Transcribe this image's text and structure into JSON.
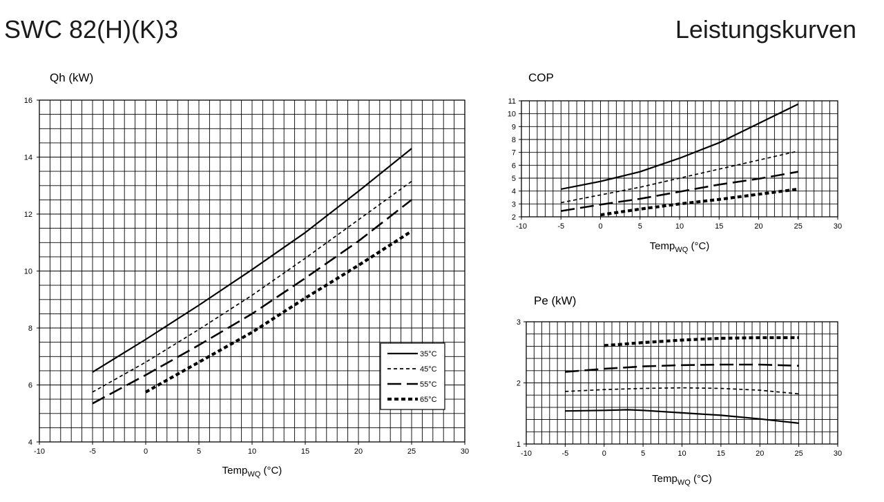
{
  "header": {
    "model": "SWC 82(H)(K)3",
    "title": "Leistungskurven"
  },
  "styles": {
    "line_color": "#000000",
    "grid_color": "#000000",
    "background": "#ffffff"
  },
  "chart_data": [
    {
      "id": "qh",
      "type": "line",
      "ylabel": "Qh (kW)",
      "xlabel": {
        "base": "Temp",
        "sub": "WQ",
        "unit": " (°C)"
      },
      "xlim": [
        -10,
        30
      ],
      "ylim": [
        4,
        16
      ],
      "xticks": [
        -10,
        -5,
        0,
        5,
        10,
        15,
        20,
        25,
        30
      ],
      "yticks": [
        4,
        6,
        8,
        10,
        12,
        14,
        16
      ],
      "grid": true,
      "legend": "bottom-right",
      "series": [
        {
          "name": "35°C",
          "dash": "solid",
          "x": [
            -5,
            0,
            5,
            10,
            15,
            20,
            25
          ],
          "y": [
            6.45,
            7.6,
            8.8,
            10.05,
            11.35,
            12.8,
            14.3
          ]
        },
        {
          "name": "45°C",
          "dash": "short",
          "x": [
            -5,
            0,
            5,
            10,
            15,
            20,
            25
          ],
          "y": [
            5.75,
            6.8,
            7.95,
            9.15,
            10.45,
            11.8,
            13.15
          ]
        },
        {
          "name": "55°C",
          "dash": "long",
          "x": [
            -5,
            0,
            5,
            10,
            15,
            20,
            25
          ],
          "y": [
            5.35,
            6.35,
            7.4,
            8.5,
            9.75,
            11.05,
            12.5
          ]
        },
        {
          "name": "65°C",
          "dash": "thick",
          "x": [
            0,
            5,
            10,
            15,
            20,
            25
          ],
          "y": [
            5.75,
            6.8,
            7.85,
            9.05,
            10.2,
            11.4
          ]
        }
      ]
    },
    {
      "id": "cop",
      "type": "line",
      "ylabel": "COP",
      "xlabel": {
        "base": "Temp",
        "sub": "WQ",
        "unit": " (°C)"
      },
      "xlim": [
        -10,
        30
      ],
      "ylim": [
        2,
        11
      ],
      "xticks": [
        -10,
        -5,
        0,
        5,
        10,
        15,
        20,
        25,
        30
      ],
      "yticks": [
        2,
        3,
        4,
        5,
        6,
        7,
        8,
        9,
        10,
        11
      ],
      "grid": true,
      "series": [
        {
          "dash": "solid",
          "x": [
            -5,
            0,
            5,
            10,
            15,
            20,
            25
          ],
          "y": [
            4.15,
            4.75,
            5.5,
            6.55,
            7.75,
            9.25,
            10.75
          ]
        },
        {
          "dash": "short",
          "x": [
            -5,
            0,
            5,
            10,
            15,
            20,
            25
          ],
          "y": [
            3.1,
            3.7,
            4.3,
            5.0,
            5.7,
            6.4,
            7.1
          ]
        },
        {
          "dash": "long",
          "x": [
            -5,
            0,
            5,
            10,
            15,
            20,
            25
          ],
          "y": [
            2.45,
            2.95,
            3.4,
            3.95,
            4.5,
            4.95,
            5.5
          ]
        },
        {
          "dash": "thick",
          "x": [
            0,
            5,
            10,
            15,
            20,
            25
          ],
          "y": [
            2.15,
            2.6,
            3.0,
            3.35,
            3.75,
            4.15
          ]
        }
      ]
    },
    {
      "id": "pe",
      "type": "line",
      "ylabel": "Pe (kW)",
      "xlabel": {
        "base": "Temp",
        "sub": "WQ",
        "unit": " (°C)"
      },
      "xlim": [
        -10,
        30
      ],
      "ylim": [
        1,
        3
      ],
      "xticks": [
        -10,
        -5,
        0,
        5,
        10,
        15,
        20,
        25,
        30
      ],
      "yticks": [
        1,
        2,
        3
      ],
      "grid": true,
      "series": [
        {
          "dash": "solid",
          "x": [
            -5,
            0,
            3,
            5,
            10,
            15,
            20,
            25
          ],
          "y": [
            1.54,
            1.55,
            1.56,
            1.55,
            1.51,
            1.47,
            1.41,
            1.34
          ]
        },
        {
          "dash": "short",
          "x": [
            -5,
            0,
            5,
            10,
            15,
            20,
            25
          ],
          "y": [
            1.86,
            1.89,
            1.91,
            1.92,
            1.91,
            1.88,
            1.82
          ]
        },
        {
          "dash": "long",
          "x": [
            -5,
            0,
            5,
            10,
            15,
            20,
            25
          ],
          "y": [
            2.18,
            2.23,
            2.27,
            2.29,
            2.3,
            2.3,
            2.28
          ]
        },
        {
          "dash": "thick",
          "x": [
            0,
            5,
            10,
            15,
            20,
            25
          ],
          "y": [
            2.61,
            2.66,
            2.7,
            2.73,
            2.74,
            2.74
          ]
        }
      ]
    }
  ]
}
